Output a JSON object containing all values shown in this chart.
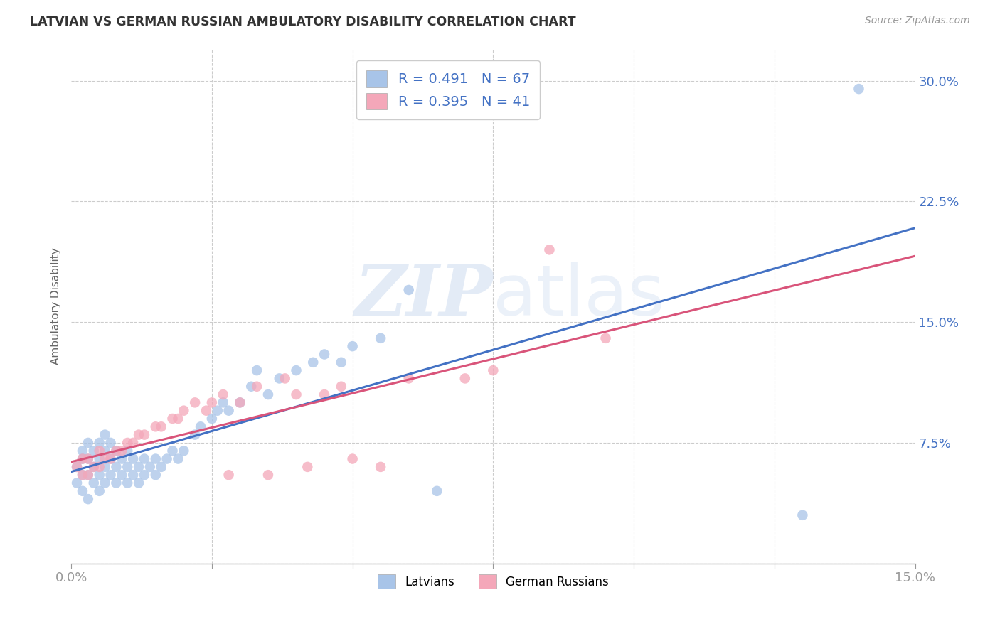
{
  "title": "LATVIAN VS GERMAN RUSSIAN AMBULATORY DISABILITY CORRELATION CHART",
  "source": "Source: ZipAtlas.com",
  "ylabel": "Ambulatory Disability",
  "xlim": [
    0.0,
    0.15
  ],
  "ylim": [
    0.0,
    0.32
  ],
  "xticks": [
    0.0,
    0.025,
    0.05,
    0.075,
    0.1,
    0.125,
    0.15
  ],
  "yticks": [
    0.0,
    0.075,
    0.15,
    0.225,
    0.3
  ],
  "latvian_R": 0.491,
  "latvian_N": 67,
  "german_russian_R": 0.395,
  "german_russian_N": 41,
  "latvian_color": "#a8c4e8",
  "latvian_line_color": "#4472c4",
  "german_russian_color": "#f4a7b9",
  "german_russian_line_color": "#d9547a",
  "background_color": "#ffffff",
  "grid_color": "#cccccc",
  "latvians_x": [
    0.001,
    0.001,
    0.002,
    0.002,
    0.002,
    0.002,
    0.003,
    0.003,
    0.003,
    0.003,
    0.004,
    0.004,
    0.004,
    0.005,
    0.005,
    0.005,
    0.005,
    0.006,
    0.006,
    0.006,
    0.006,
    0.007,
    0.007,
    0.007,
    0.008,
    0.008,
    0.008,
    0.009,
    0.009,
    0.01,
    0.01,
    0.01,
    0.011,
    0.011,
    0.012,
    0.012,
    0.013,
    0.013,
    0.014,
    0.015,
    0.015,
    0.016,
    0.017,
    0.018,
    0.019,
    0.02,
    0.022,
    0.023,
    0.025,
    0.026,
    0.027,
    0.028,
    0.03,
    0.032,
    0.033,
    0.035,
    0.037,
    0.04,
    0.043,
    0.045,
    0.048,
    0.05,
    0.055,
    0.06,
    0.065,
    0.13,
    0.14
  ],
  "latvians_y": [
    0.05,
    0.06,
    0.045,
    0.055,
    0.065,
    0.07,
    0.04,
    0.055,
    0.065,
    0.075,
    0.05,
    0.06,
    0.07,
    0.045,
    0.055,
    0.065,
    0.075,
    0.05,
    0.06,
    0.07,
    0.08,
    0.055,
    0.065,
    0.075,
    0.05,
    0.06,
    0.07,
    0.055,
    0.065,
    0.05,
    0.06,
    0.07,
    0.055,
    0.065,
    0.05,
    0.06,
    0.055,
    0.065,
    0.06,
    0.055,
    0.065,
    0.06,
    0.065,
    0.07,
    0.065,
    0.07,
    0.08,
    0.085,
    0.09,
    0.095,
    0.1,
    0.095,
    0.1,
    0.11,
    0.12,
    0.105,
    0.115,
    0.12,
    0.125,
    0.13,
    0.125,
    0.135,
    0.14,
    0.17,
    0.045,
    0.03,
    0.295
  ],
  "german_russians_x": [
    0.001,
    0.002,
    0.002,
    0.003,
    0.003,
    0.004,
    0.005,
    0.005,
    0.006,
    0.007,
    0.008,
    0.009,
    0.01,
    0.011,
    0.012,
    0.013,
    0.015,
    0.016,
    0.018,
    0.019,
    0.02,
    0.022,
    0.024,
    0.025,
    0.027,
    0.028,
    0.03,
    0.033,
    0.035,
    0.038,
    0.04,
    0.042,
    0.045,
    0.048,
    0.05,
    0.055,
    0.06,
    0.07,
    0.075,
    0.085,
    0.095
  ],
  "german_russians_y": [
    0.06,
    0.055,
    0.065,
    0.055,
    0.065,
    0.06,
    0.06,
    0.07,
    0.065,
    0.065,
    0.07,
    0.07,
    0.075,
    0.075,
    0.08,
    0.08,
    0.085,
    0.085,
    0.09,
    0.09,
    0.095,
    0.1,
    0.095,
    0.1,
    0.105,
    0.055,
    0.1,
    0.11,
    0.055,
    0.115,
    0.105,
    0.06,
    0.105,
    0.11,
    0.065,
    0.06,
    0.115,
    0.115,
    0.12,
    0.195,
    0.14
  ]
}
